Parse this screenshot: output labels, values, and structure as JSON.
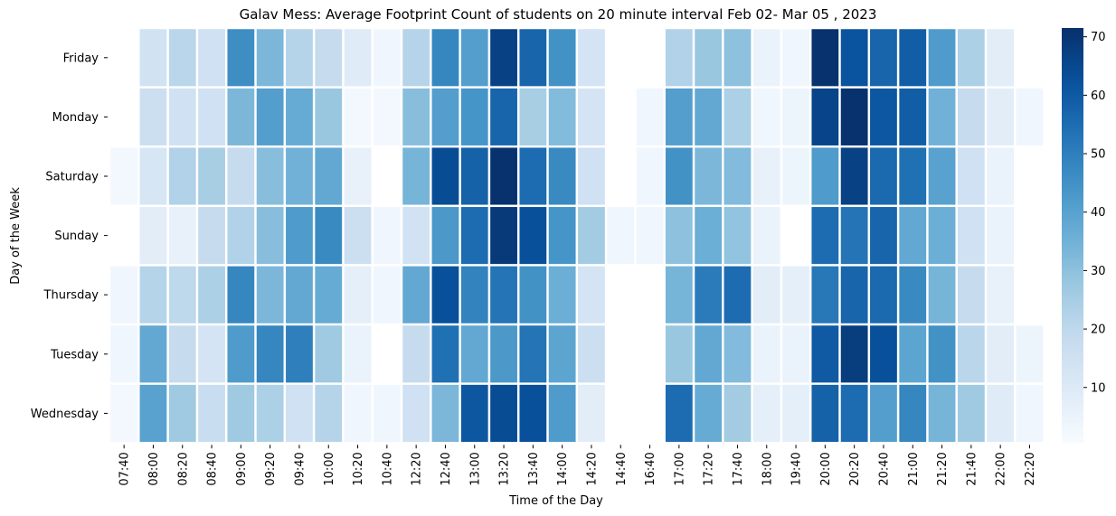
{
  "chart_data": {
    "type": "heatmap",
    "title": "Galav Mess: Average Footprint Count of students on 20 minute interval Feb 02- Mar 05 , 2023",
    "xlabel": "Time of the Day",
    "ylabel": "Day of the Week",
    "x": [
      "07:40",
      "08:00",
      "08:20",
      "08:40",
      "09:00",
      "09:20",
      "09:40",
      "10:00",
      "10:20",
      "10:40",
      "12:20",
      "12:40",
      "13:00",
      "13:20",
      "13:40",
      "14:00",
      "14:20",
      "14:40",
      "16:40",
      "17:00",
      "17:20",
      "17:40",
      "18:00",
      "19:40",
      "20:00",
      "20:20",
      "20:40",
      "21:00",
      "21:20",
      "21:40",
      "22:00",
      "22:20"
    ],
    "y": [
      "Friday",
      "Monday",
      "Saturday",
      "Sunday",
      "Thursday",
      "Tuesday",
      "Wednesday"
    ],
    "values": [
      [
        null,
        14,
        21,
        15,
        46,
        33,
        22,
        18,
        9,
        3,
        22,
        48,
        41,
        67,
        57,
        45,
        13,
        null,
        null,
        23,
        28,
        30,
        5,
        3,
        71,
        62,
        57,
        59,
        42,
        24,
        8,
        null
      ],
      [
        null,
        16,
        15,
        15,
        33,
        41,
        37,
        28,
        2,
        2,
        31,
        41,
        44,
        57,
        25,
        32,
        13,
        null,
        3,
        41,
        38,
        24,
        3,
        4,
        66,
        71,
        61,
        59,
        35,
        18,
        8,
        3
      ],
      [
        2,
        12,
        23,
        25,
        18,
        31,
        35,
        38,
        6,
        null,
        34,
        64,
        58,
        71,
        55,
        47,
        15,
        null,
        3,
        45,
        33,
        32,
        6,
        4,
        42,
        67,
        56,
        54,
        40,
        15,
        5,
        null
      ],
      [
        null,
        8,
        6,
        18,
        23,
        31,
        42,
        47,
        16,
        3,
        14,
        43,
        55,
        69,
        63,
        44,
        26,
        3,
        3,
        30,
        36,
        29,
        5,
        null,
        55,
        53,
        57,
        38,
        36,
        15,
        5,
        null
      ],
      [
        3,
        22,
        20,
        24,
        48,
        33,
        38,
        37,
        7,
        3,
        38,
        63,
        49,
        53,
        45,
        36,
        13,
        null,
        null,
        34,
        51,
        55,
        8,
        7,
        52,
        57,
        56,
        47,
        34,
        18,
        6,
        null
      ],
      [
        3,
        38,
        18,
        13,
        42,
        48,
        50,
        27,
        5,
        null,
        18,
        54,
        38,
        43,
        53,
        39,
        16,
        null,
        null,
        28,
        38,
        32,
        5,
        5,
        60,
        68,
        63,
        39,
        45,
        21,
        8,
        4
      ],
      [
        2,
        40,
        27,
        17,
        27,
        24,
        15,
        22,
        3,
        3,
        15,
        33,
        61,
        64,
        63,
        42,
        8,
        null,
        null,
        55,
        37,
        26,
        7,
        7,
        58,
        55,
        41,
        48,
        34,
        27,
        9,
        3
      ]
    ],
    "colorbar": {
      "min": 0.5,
      "max": 71.5,
      "ticks": [
        10,
        20,
        30,
        40,
        50,
        60,
        70
      ],
      "palette": "Blues"
    }
  }
}
